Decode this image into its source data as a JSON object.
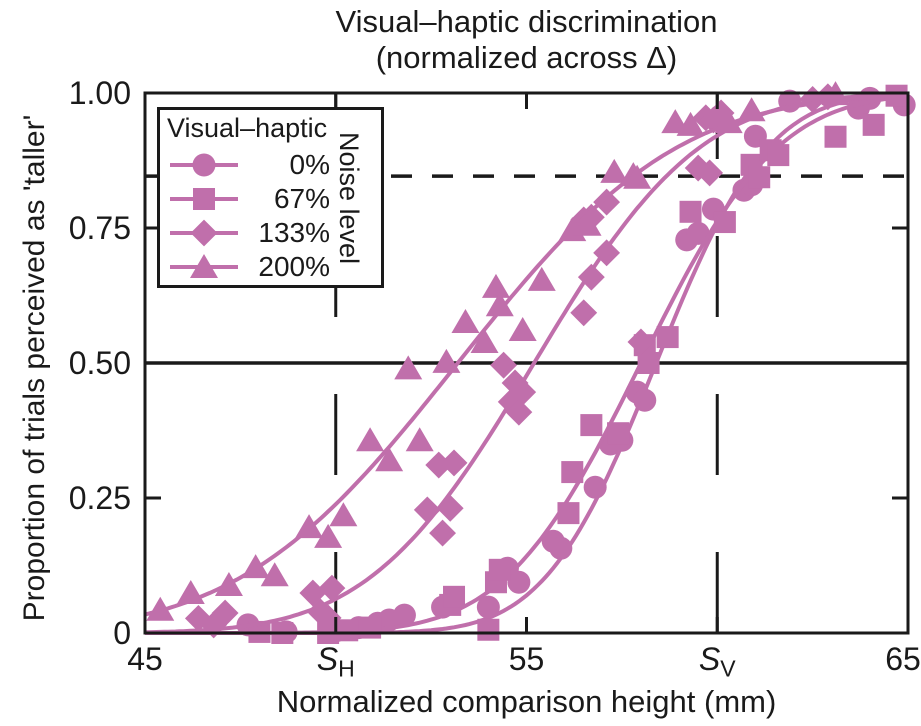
{
  "title": {
    "line1": "Visual–haptic discrimination",
    "line2": "(normalized across Δ)"
  },
  "legend": {
    "title": "Visual–haptic",
    "side_label": "Noise level",
    "entries": [
      {
        "label": "0%",
        "marker": "circle"
      },
      {
        "label": "67%",
        "marker": "square"
      },
      {
        "label": "133%",
        "marker": "diamond"
      },
      {
        "label": "200%",
        "marker": "triangle"
      }
    ]
  },
  "chart_data": {
    "type": "scatter",
    "subtype": "psychometric-functions (scatter points + cumulative-Gaussian fit curves)",
    "color": "#c06fab",
    "axis_color": "#1a1a1a",
    "x_axis": {
      "label": "Normalized comparison height (mm)",
      "range": [
        45,
        65
      ],
      "ticks": [
        {
          "at": 45,
          "label": "45"
        },
        {
          "at": 50,
          "label": "S",
          "sub": "H"
        },
        {
          "at": 55,
          "label": "55"
        },
        {
          "at": 60,
          "label": "S",
          "sub": "V"
        },
        {
          "at": 65,
          "label": "65"
        }
      ]
    },
    "y_axis": {
      "label": "Proportion of trials perceived as 'taller'",
      "range": [
        0,
        1
      ],
      "ticks": [
        {
          "at": 0,
          "label": "0"
        },
        {
          "at": 0.25,
          "label": "0.25"
        },
        {
          "at": 0.5,
          "label": "0.50"
        },
        {
          "at": 0.75,
          "label": "0.75"
        },
        {
          "at": 1,
          "label": "1.00"
        }
      ]
    },
    "reference_lines": {
      "solid_horizontal_at": 0.5,
      "dashed_horizontal_at": 0.846,
      "dashed_vertical_at": [
        50,
        60
      ]
    },
    "series": [
      {
        "name": "0%",
        "marker": "circle",
        "fit": {
          "mu": 58.4,
          "sigma": 2.3
        },
        "points": [
          [
            47.7,
            0.015
          ],
          [
            48.7,
            0.002
          ],
          [
            50.0,
            0.004
          ],
          [
            50.6,
            0.01
          ],
          [
            51.1,
            0.018
          ],
          [
            51.4,
            0.024
          ],
          [
            51.8,
            0.033
          ],
          [
            52.8,
            0.048
          ],
          [
            54.0,
            0.048
          ],
          [
            54.5,
            0.12
          ],
          [
            54.8,
            0.094
          ],
          [
            55.7,
            0.17
          ],
          [
            55.9,
            0.157
          ],
          [
            56.8,
            0.27
          ],
          [
            57.2,
            0.35
          ],
          [
            57.5,
            0.357
          ],
          [
            57.9,
            0.446
          ],
          [
            58.1,
            0.431
          ],
          [
            59.2,
            0.728
          ],
          [
            59.5,
            0.74
          ],
          [
            59.9,
            0.785
          ],
          [
            60.7,
            0.82
          ],
          [
            60.9,
            0.83
          ],
          [
            61.0,
            0.92
          ],
          [
            61.9,
            0.985
          ],
          [
            63.7,
            0.972
          ],
          [
            64.0,
            0.99
          ],
          [
            64.9,
            0.978
          ]
        ]
      },
      {
        "name": "67%",
        "marker": "square",
        "fit": {
          "mu": 58.0,
          "sigma": 2.8
        },
        "points": [
          [
            48.0,
            0.002
          ],
          [
            48.6,
            0.0
          ],
          [
            49.8,
            0.0
          ],
          [
            50.3,
            0.005
          ],
          [
            50.9,
            0.01
          ],
          [
            53.0,
            0.052
          ],
          [
            53.1,
            0.067
          ],
          [
            54.0,
            0.006
          ],
          [
            54.2,
            0.094
          ],
          [
            54.3,
            0.117
          ],
          [
            56.1,
            0.222
          ],
          [
            56.2,
            0.298
          ],
          [
            56.7,
            0.385
          ],
          [
            57.4,
            0.37
          ],
          [
            58.1,
            0.533
          ],
          [
            58.2,
            0.5
          ],
          [
            58.7,
            0.548
          ],
          [
            59.3,
            0.78
          ],
          [
            60.2,
            0.761
          ],
          [
            60.9,
            0.867
          ],
          [
            61.1,
            0.844
          ],
          [
            61.4,
            0.894
          ],
          [
            61.6,
            0.885
          ],
          [
            63.1,
            0.919
          ],
          [
            64.1,
            0.941
          ],
          [
            64.7,
            0.995
          ]
        ]
      },
      {
        "name": "133%",
        "marker": "diamond",
        "fit": {
          "mu": 55.2,
          "sigma": 3.4
        },
        "points": [
          [
            46.4,
            0.027
          ],
          [
            46.8,
            0.015
          ],
          [
            47.1,
            0.037
          ],
          [
            49.4,
            0.074
          ],
          [
            49.6,
            0.039
          ],
          [
            49.8,
            0.028
          ],
          [
            49.9,
            0.083
          ],
          [
            52.4,
            0.228
          ],
          [
            52.7,
            0.311
          ],
          [
            52.8,
            0.185
          ],
          [
            53.0,
            0.231
          ],
          [
            53.1,
            0.315
          ],
          [
            54.4,
            0.496
          ],
          [
            54.6,
            0.428
          ],
          [
            54.7,
            0.463
          ],
          [
            54.8,
            0.409
          ],
          [
            54.9,
            0.446
          ],
          [
            56.5,
            0.593
          ],
          [
            56.7,
            0.659
          ],
          [
            57.1,
            0.704
          ],
          [
            56.5,
            0.765
          ],
          [
            56.7,
            0.77
          ],
          [
            57.1,
            0.798
          ],
          [
            58.0,
            0.539
          ],
          [
            59.5,
            0.861
          ],
          [
            59.8,
            0.852
          ],
          [
            59.7,
            0.954
          ],
          [
            59.9,
            0.95
          ],
          [
            60.1,
            0.963
          ],
          [
            62.5,
            0.988
          ],
          [
            62.9,
            0.993
          ]
        ]
      },
      {
        "name": "200%",
        "marker": "triangle",
        "fit": {
          "mu": 53.2,
          "sigma": 4.5
        },
        "points": [
          [
            45.4,
            0.043
          ],
          [
            46.2,
            0.074
          ],
          [
            47.2,
            0.089
          ],
          [
            47.9,
            0.122
          ],
          [
            48.4,
            0.107
          ],
          [
            49.3,
            0.196
          ],
          [
            49.8,
            0.178
          ],
          [
            50.2,
            0.218
          ],
          [
            50.9,
            0.357
          ],
          [
            51.4,
            0.32
          ],
          [
            51.9,
            0.49
          ],
          [
            52.2,
            0.357
          ],
          [
            52.9,
            0.502
          ],
          [
            53.4,
            0.576
          ],
          [
            53.9,
            0.539
          ],
          [
            54.2,
            0.641
          ],
          [
            54.3,
            0.607
          ],
          [
            54.9,
            0.561
          ],
          [
            55.4,
            0.654
          ],
          [
            56.2,
            0.746
          ],
          [
            56.6,
            0.756
          ],
          [
            57.3,
            0.854
          ],
          [
            57.8,
            0.848
          ],
          [
            57.9,
            0.843
          ],
          [
            58.9,
            0.946
          ],
          [
            59.3,
            0.941
          ],
          [
            60.3,
            0.946
          ],
          [
            60.9,
            0.968
          ],
          [
            63.1,
            0.998
          ]
        ]
      }
    ]
  }
}
